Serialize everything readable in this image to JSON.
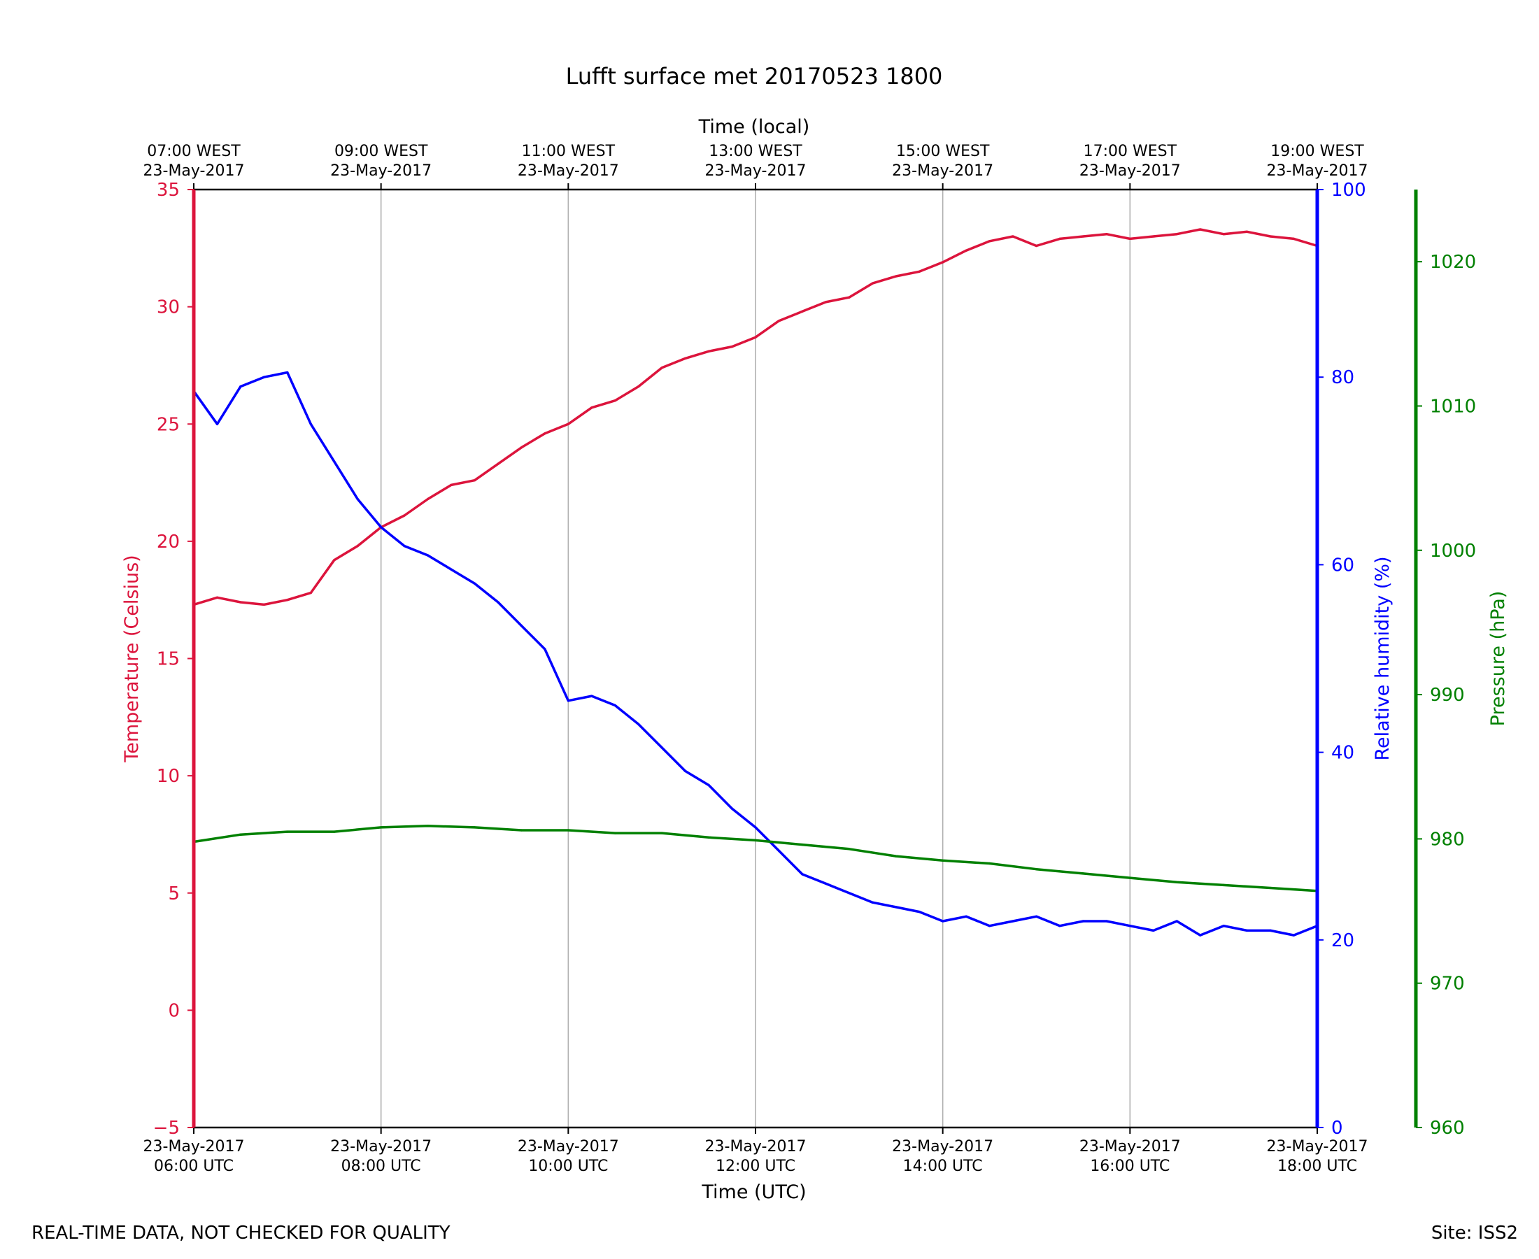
{
  "footer": {
    "left": "REAL-TIME DATA, NOT CHECKED FOR QUALITY",
    "right": "Site: ISS2"
  },
  "chart_data": {
    "type": "line",
    "title": "Lufft surface met 20170523 1800",
    "xlabel": "Time (UTC)",
    "x2label": "Time (local)",
    "x_range": [
      "2017-05-23 06:00",
      "2017-05-23 18:00"
    ],
    "grid": "vertical",
    "x_ticks_bottom": [
      [
        "23-May-2017",
        "06:00 UTC"
      ],
      [
        "23-May-2017",
        "08:00 UTC"
      ],
      [
        "23-May-2017",
        "10:00 UTC"
      ],
      [
        "23-May-2017",
        "12:00 UTC"
      ],
      [
        "23-May-2017",
        "14:00 UTC"
      ],
      [
        "23-May-2017",
        "16:00 UTC"
      ],
      [
        "23-May-2017",
        "18:00 UTC"
      ]
    ],
    "x_ticks_top": [
      [
        "07:00 WEST",
        "23-May-2017"
      ],
      [
        "09:00 WEST",
        "23-May-2017"
      ],
      [
        "11:00 WEST",
        "23-May-2017"
      ],
      [
        "13:00 WEST",
        "23-May-2017"
      ],
      [
        "15:00 WEST",
        "23-May-2017"
      ],
      [
        "17:00 WEST",
        "23-May-2017"
      ],
      [
        "19:00 WEST",
        "23-May-2017"
      ]
    ],
    "axes": {
      "temperature": {
        "label": "Temperature (Celsius)",
        "ylim": [
          -5,
          35
        ],
        "ticks": [
          -5,
          0,
          5,
          10,
          15,
          20,
          25,
          30,
          35
        ],
        "tick_labels": [
          "−5",
          "0",
          "5",
          "10",
          "15",
          "20",
          "25",
          "30",
          "35"
        ],
        "color": "#dc143c",
        "position": "left"
      },
      "humidity": {
        "label": "Relative humidity (%)",
        "ylim": [
          0,
          100
        ],
        "ticks": [
          0,
          20,
          40,
          60,
          80,
          100
        ],
        "tick_labels": [
          "0",
          "20",
          "40",
          "60",
          "80",
          "100"
        ],
        "color": "#0000ff",
        "position": "right"
      },
      "pressure": {
        "label": "Pressure (hPa)",
        "ylim": [
          960,
          1025
        ],
        "ticks": [
          960,
          970,
          980,
          990,
          1000,
          1010,
          1020
        ],
        "tick_labels": [
          "960",
          "970",
          "980",
          "990",
          "1000",
          "1010",
          "1020"
        ],
        "color": "#008000",
        "position": "right-outer"
      }
    },
    "series": [
      {
        "axis": "temperature",
        "x": [
          "06:00",
          "06:15",
          "06:30",
          "06:45",
          "07:00",
          "07:15",
          "07:30",
          "07:45",
          "08:00",
          "08:15",
          "08:30",
          "08:45",
          "09:00",
          "09:15",
          "09:30",
          "09:45",
          "10:00",
          "10:15",
          "10:30",
          "10:45",
          "11:00",
          "11:15",
          "11:30",
          "11:45",
          "12:00",
          "12:15",
          "12:30",
          "12:45",
          "13:00",
          "13:15",
          "13:30",
          "13:45",
          "14:00",
          "14:15",
          "14:30",
          "14:45",
          "15:00",
          "15:15",
          "15:30",
          "15:45",
          "16:00",
          "16:15",
          "16:30",
          "16:45",
          "17:00",
          "17:15",
          "17:30",
          "17:45",
          "18:00"
        ],
        "values": [
          17.3,
          17.6,
          17.4,
          17.3,
          17.5,
          17.8,
          19.2,
          19.8,
          20.6,
          21.1,
          21.8,
          22.4,
          22.6,
          23.3,
          24.0,
          24.6,
          25.0,
          25.7,
          26.0,
          26.6,
          27.4,
          27.8,
          28.1,
          28.3,
          28.7,
          29.4,
          29.8,
          30.2,
          30.4,
          31.0,
          31.3,
          31.5,
          31.9,
          32.4,
          32.8,
          33.0,
          32.6,
          32.9,
          33.0,
          33.1,
          32.9,
          33.0,
          33.1,
          33.3,
          33.1,
          33.2,
          33.0,
          32.9,
          32.6
        ]
      },
      {
        "axis": "humidity",
        "x": [
          "06:00",
          "06:15",
          "06:30",
          "06:45",
          "07:00",
          "07:15",
          "07:30",
          "07:45",
          "08:00",
          "08:15",
          "08:30",
          "08:45",
          "09:00",
          "09:15",
          "09:30",
          "09:45",
          "10:00",
          "10:15",
          "10:30",
          "10:45",
          "11:00",
          "11:15",
          "11:30",
          "11:45",
          "12:00",
          "12:15",
          "12:30",
          "12:45",
          "13:00",
          "13:15",
          "13:30",
          "13:45",
          "14:00",
          "14:15",
          "14:30",
          "14:45",
          "15:00",
          "15:15",
          "15:30",
          "15:45",
          "16:00",
          "16:15",
          "16:30",
          "16:45",
          "17:00",
          "17:15",
          "17:30",
          "17:45",
          "18:00"
        ],
        "values": [
          78.5,
          75,
          79,
          80,
          80.5,
          75,
          71,
          67,
          64,
          62,
          61,
          59.5,
          58,
          56,
          53.5,
          51,
          45.5,
          46,
          45,
          43,
          40.5,
          38,
          36.5,
          34,
          32,
          29.5,
          27,
          26,
          25,
          24,
          23.5,
          23,
          22,
          22.5,
          21.5,
          22,
          22.5,
          21.5,
          22,
          22,
          21.5,
          21,
          22,
          20.5,
          21.5,
          21,
          21,
          20.5,
          21.5
        ]
      },
      {
        "axis": "pressure",
        "x": [
          "06:00",
          "06:30",
          "07:00",
          "07:30",
          "08:00",
          "08:30",
          "09:00",
          "09:30",
          "10:00",
          "10:30",
          "11:00",
          "11:30",
          "12:00",
          "12:30",
          "13:00",
          "13:30",
          "14:00",
          "14:30",
          "15:00",
          "15:30",
          "16:00",
          "16:30",
          "17:00",
          "17:30",
          "18:00"
        ],
        "values": [
          979.8,
          980.3,
          980.5,
          980.5,
          980.8,
          980.9,
          980.8,
          980.6,
          980.6,
          980.4,
          980.4,
          980.1,
          979.9,
          979.6,
          979.3,
          978.8,
          978.5,
          978.3,
          977.9,
          977.6,
          977.3,
          977,
          976.8,
          976.6,
          976.4
        ]
      }
    ]
  }
}
